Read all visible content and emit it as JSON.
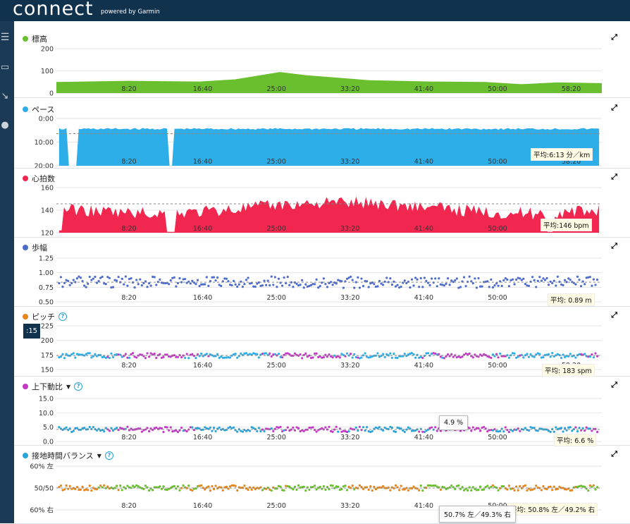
{
  "app": {
    "logo": "connect",
    "powered_by": "powered by Garmin"
  },
  "x_ticks": [
    "8:20",
    "16:40",
    "25:00",
    "33:20",
    "41:40",
    "50:00",
    "58:20"
  ],
  "time_badge": ":15",
  "panels": [
    {
      "title": "標高",
      "color": "#6abf2e",
      "y_ticks": [
        "200",
        "100",
        "0"
      ]
    },
    {
      "title": "ペース",
      "color": "#2eaee8",
      "y_ticks": [
        "0:00",
        "10:00",
        "20:00"
      ],
      "avg": "平均:6:13 分／km"
    },
    {
      "title": "心拍数",
      "color": "#f2274f",
      "y_ticks": [
        "160",
        "140",
        "120"
      ],
      "avg": "平均:146 bpm"
    },
    {
      "title": "歩幅",
      "color": "#4e6ccb",
      "y_ticks": [
        "1.25",
        "1.00",
        "0.75",
        "0.50"
      ],
      "avg": "平均: 0.89 m"
    },
    {
      "title": "ピッチ",
      "color": "#e5851a",
      "y_ticks": [
        "225",
        "200",
        "175",
        "150"
      ],
      "avg": "平均: 183 spm"
    },
    {
      "title": "上下動比",
      "color": "#c43ac4",
      "y_ticks": [
        "15.0",
        "10.0",
        "5.0",
        "0.0"
      ],
      "avg": "平均: 6.6 %",
      "tooltip": "4.9 %"
    },
    {
      "title": "接地時間バランス",
      "color": "#2aa3d9",
      "y_ticks": [
        "60% 左",
        "50/50",
        "60% 右"
      ],
      "avg": "平均: 50.8% 左／49.2% 右",
      "tooltip": "50.7% 左／49.3% 右"
    }
  ],
  "chart_data": [
    {
      "type": "area",
      "title": "標高",
      "x_range": [
        "0:00",
        "61:40"
      ],
      "ylim": [
        0,
        200
      ],
      "x_minutes": [
        0,
        8,
        16,
        20,
        25,
        28,
        35,
        42,
        48,
        52,
        56,
        61
      ],
      "values": [
        50,
        55,
        52,
        62,
        95,
        80,
        58,
        52,
        50,
        40,
        48,
        45
      ]
    },
    {
      "type": "area",
      "title": "ペース",
      "ylim": [
        "0:00",
        "20:00"
      ],
      "avg": "6:13"
    },
    {
      "type": "area",
      "title": "心拍数",
      "ylim": [
        120,
        160
      ],
      "avg": 146
    },
    {
      "type": "scatter",
      "title": "歩幅",
      "ylim": [
        0.5,
        1.25
      ],
      "avg": 0.89
    },
    {
      "type": "scatter",
      "title": "ピッチ",
      "ylim": [
        150,
        225
      ],
      "avg": 183
    },
    {
      "type": "scatter",
      "title": "上下動比",
      "ylim": [
        0,
        15
      ],
      "avg": 6.6
    },
    {
      "type": "scatter",
      "title": "接地時間バランス",
      "ylim": [
        "60% 左",
        "60% 右"
      ],
      "avg": "50.8% 左／49.2% 右"
    }
  ]
}
